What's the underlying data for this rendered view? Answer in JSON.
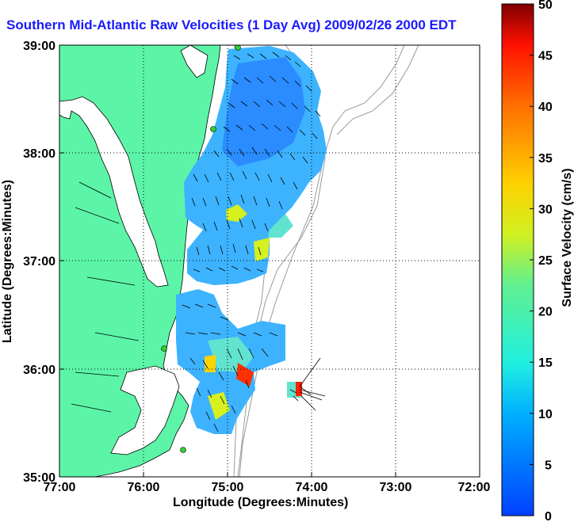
{
  "title": "Southern Mid-Atlantic Raw Velocities (1 Day Avg) 2009/02/26 2000 EDT",
  "map": {
    "x_label": "Longitude (Degrees:Minutes)",
    "y_label": "Latitude (Degrees:Minutes)",
    "lon_ticks": [
      "77:00",
      "76:00",
      "75:00",
      "74:00",
      "73:00",
      "72:00"
    ],
    "lat_ticks": [
      "39:00",
      "38:00",
      "37:00",
      "36:00",
      "35:00"
    ],
    "land_color": "#5cf5a8",
    "ocean_color": "#ffffff",
    "grid": "dotted"
  },
  "colorbar": {
    "label": "Surface Velocity (cm/s)",
    "ticks": [
      "50",
      "45",
      "40",
      "35",
      "30",
      "25",
      "20",
      "15",
      "10",
      "5",
      "0"
    ],
    "colors": [
      "#7f0000",
      "#d40000",
      "#ff2a00",
      "#ff7f00",
      "#ffd400",
      "#d4ff2a",
      "#7fff7f",
      "#2affd4",
      "#00d4ff",
      "#007fff",
      "#0000ff"
    ]
  }
}
